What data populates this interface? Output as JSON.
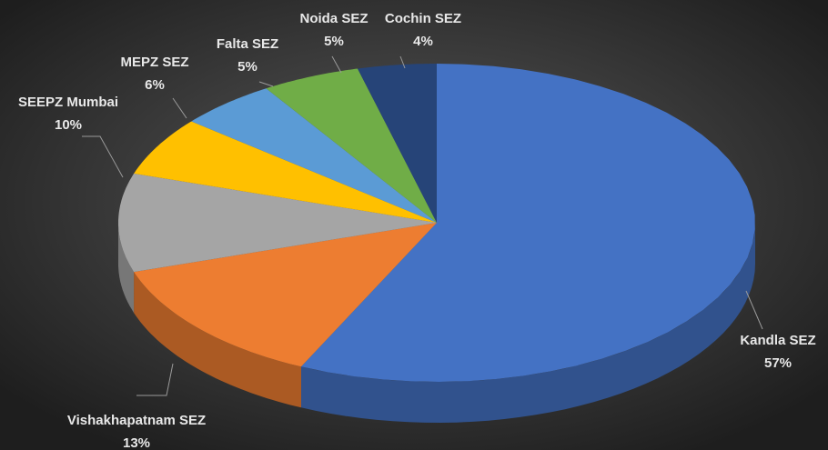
{
  "chart_data": {
    "type": "pie3d",
    "categories": [
      "Kandla SEZ",
      "Vishakhapatnam SEZ",
      "SEEPZ Mumbai",
      "MEPZ SEZ",
      "Falta SEZ",
      "Noida SEZ",
      "Cochin SEZ"
    ],
    "values": [
      57,
      13,
      10,
      6,
      5,
      5,
      4
    ],
    "value_labels": [
      "57%",
      "13%",
      "10%",
      "6%",
      "5%",
      "5%",
      "4%"
    ],
    "colors": [
      "#4472c4",
      "#ed7d31",
      "#a5a5a5",
      "#ffc000",
      "#5b9bd5",
      "#70ad47",
      "#264478"
    ]
  }
}
